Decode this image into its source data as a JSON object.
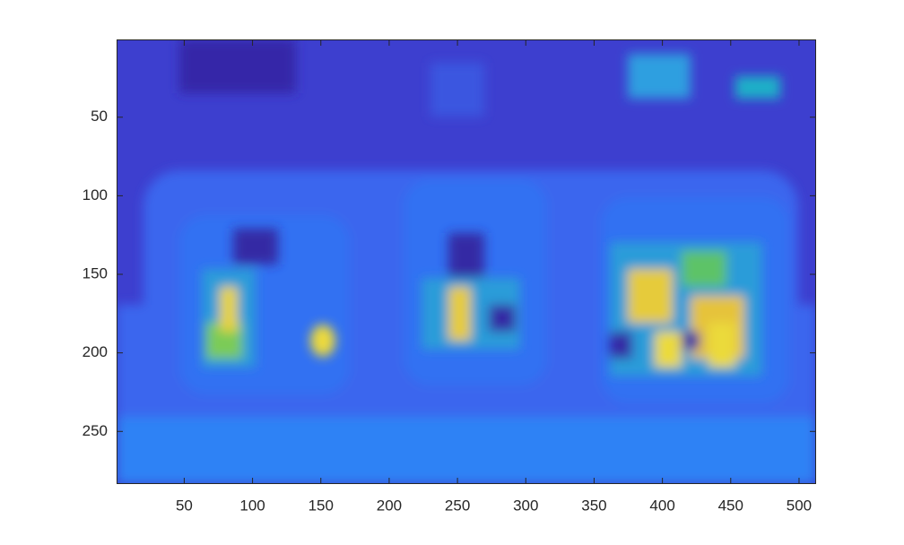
{
  "chart_data": {
    "type": "image",
    "xlim": [
      0.5,
      512.5
    ],
    "ylim": [
      0.5,
      283.5
    ],
    "y_reversed": true,
    "xticks": [
      50,
      100,
      150,
      200,
      250,
      300,
      350,
      400,
      450,
      500
    ],
    "yticks": [
      50,
      100,
      150,
      200,
      250
    ]
  }
}
